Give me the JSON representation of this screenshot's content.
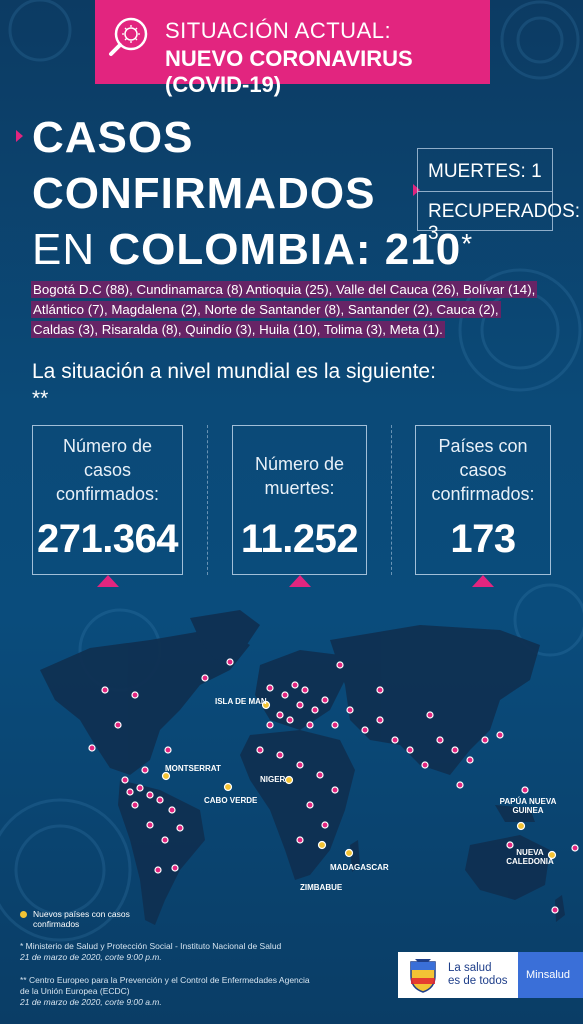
{
  "header": {
    "line1": "SITUACIÓN ACTUAL:",
    "line2": "NUEVO CORONAVIRUS (COVID-19)",
    "icon": "virus-magnifier-icon"
  },
  "title": {
    "line1": "CASOS",
    "line2": "CONFIRMADOS",
    "line3_prefix": "EN ",
    "line3_country": "COLOMBIA: 210",
    "asterisk": "*"
  },
  "stats": {
    "muertes": "MUERTES: 1",
    "recuperados": "RECUPERADOS: 3"
  },
  "regions": {
    "line1": "Bogotá D.C (88), Cundinamarca (8) Antioquia (25), Valle del Cauca (26), Bolívar (14),",
    "line2": "Atlántico (7), Magdalena (2), Norte de Santander (8), Santander (2), Cauca (2),",
    "line3": "Caldas (3), Risaralda (8), Quindío (3), Huila (10), Tolima (3), Meta (1)."
  },
  "world": {
    "title": "La situación a nivel mundial es la siguiente: **"
  },
  "cards": [
    {
      "label": "Número de casos confirmados:",
      "value": "271.364"
    },
    {
      "label": "Número de muertes:",
      "value": "11.252"
    },
    {
      "label": "Países con casos confirmados:",
      "value": "173"
    }
  ],
  "map_labels": {
    "isla_de_man": "ISLA DE MAN",
    "montserrat": "MONTSERRAT",
    "cabo_verde": "CABO VERDE",
    "niger": "NIGER",
    "madagascar": "MADAGASCAR",
    "zimbabue": "ZIMBABUE",
    "papua": "PAPÚA NUEVA GUINEA",
    "nueva_caledonia": "NUEVA CALEDONIA"
  },
  "legend": {
    "text": "Nuevos países con casos confirmados",
    "new_color": "#f3c335",
    "case_color": "#e2257f"
  },
  "footnotes": {
    "fn1_main": "* Ministerio de Salud y Protección Social - Instituto Nacional de Salud",
    "fn1_date": "21 de marzo de 2020, corte 9:00 p.m.",
    "fn2_main": "** Centro Europeo para la Prevención y el Control de Enfermedades Agencia de la Unión Europea (ECDC)",
    "fn2_date": "21 de marzo de 2020, corte 9:00 a.m."
  },
  "logo": {
    "brand_line1": "La salud",
    "brand_line2": "es de todos",
    "ministry": "Minsalud"
  },
  "colors": {
    "accent": "#e2257f",
    "background": "#0b4a78",
    "highlight": "#f3c335"
  }
}
